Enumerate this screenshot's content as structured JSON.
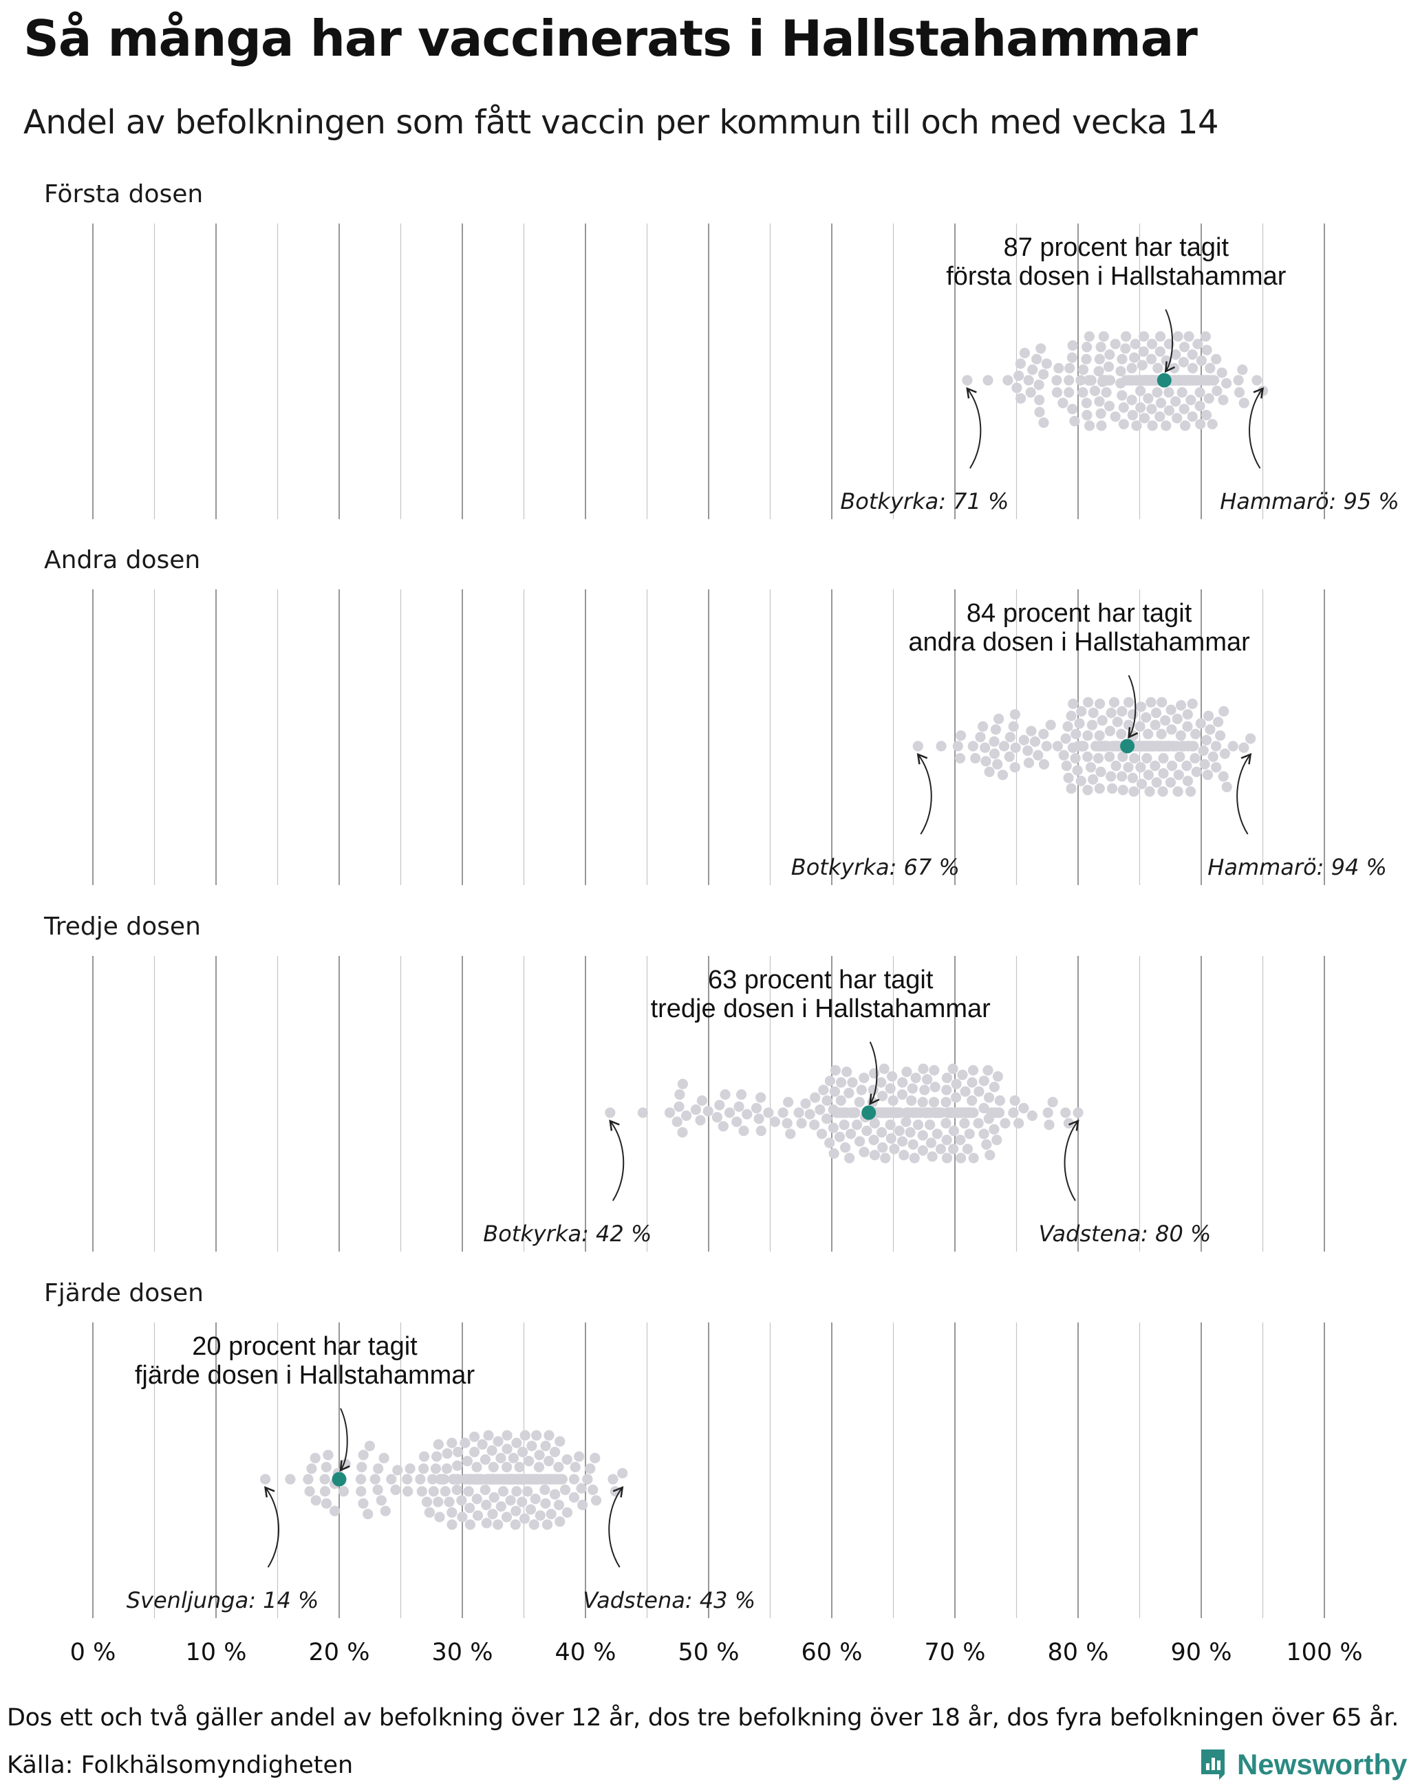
{
  "title": "Så många har vaccinerats i Hallstahammar",
  "subtitle": "Andel av befolkningen som fått vaccin per kommun till och med vecka 14",
  "footnote": "Dos ett och två gäller andel av befolkning över 12 år, dos tre befolkning över 18 år, dos fyra befolkningen över 65 år.",
  "source": "Källa: Folkhälsomyndigheten",
  "brand": "Newsworthy",
  "colors": {
    "dot": "#d3d2d9",
    "highlight": "#1f8a7c",
    "gridline": "#8c8c8c",
    "brand": "#2a8a82"
  },
  "chart_data": {
    "type": "scatter",
    "subtype": "beeswarm",
    "x_tick_labels": [
      "0 %",
      "10 %",
      "20 %",
      "30 %",
      "40 %",
      "50 %",
      "60 %",
      "70 %",
      "80 %",
      "90 %",
      "100 %"
    ],
    "xlim": [
      0,
      100
    ],
    "grid": true,
    "panels": [
      {
        "label": "Första dosen",
        "highlight": {
          "name": "Hallstahammar",
          "value": 87
        },
        "annotation": [
          "87 procent har tagit",
          "första dosen i Hallstahammar"
        ],
        "min": {
          "label": "Botkyrka: 71 %",
          "value": 71
        },
        "max": {
          "label": "Hammarö: 95 %",
          "value": 95
        }
      },
      {
        "label": "Andra dosen",
        "highlight": {
          "name": "Hallstahammar",
          "value": 84
        },
        "annotation": [
          "84 procent har tagit",
          "andra dosen i Hallstahammar"
        ],
        "min": {
          "label": "Botkyrka: 67 %",
          "value": 67
        },
        "max": {
          "label": "Hammarö: 94 %",
          "value": 94
        }
      },
      {
        "label": "Tredje dosen",
        "highlight": {
          "name": "Hallstahammar",
          "value": 63
        },
        "annotation": [
          "63 procent har tagit",
          "tredje dosen i Hallstahammar"
        ],
        "min": {
          "label": "Botkyrka: 42 %",
          "value": 42
        },
        "max": {
          "label": "Vadstena: 80 %",
          "value": 80
        }
      },
      {
        "label": "Fjärde dosen",
        "highlight": {
          "name": "Hallstahammar",
          "value": 20
        },
        "annotation": [
          "20 procent har tagit",
          "fjärde dosen i Hallstahammar"
        ],
        "min": {
          "label": "Svenljunga: 14 %",
          "value": 14
        },
        "max": {
          "label": "Vadstena: 43 %",
          "value": 43
        }
      }
    ]
  }
}
